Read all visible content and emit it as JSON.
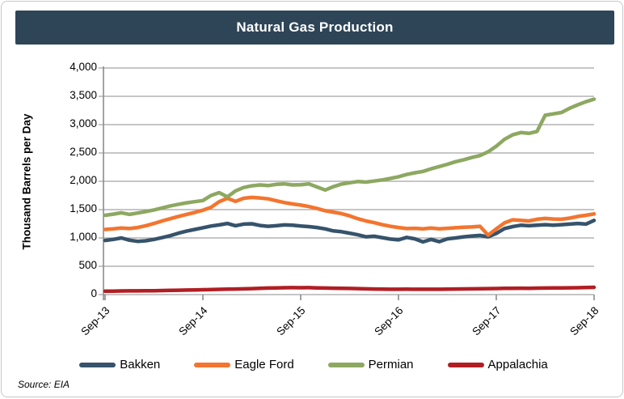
{
  "header": {
    "title": "Natural Gas Production"
  },
  "source": {
    "label": "Source: EIA"
  },
  "colors": {
    "header_bg": "#2E4557",
    "gridline": "#A3A3A3",
    "axis": "#8C8C8C",
    "text": "#000000"
  },
  "chart_data": {
    "type": "line",
    "title": "Natural Gas Production",
    "xlabel": "",
    "ylabel": "Thousand Barrels per Day",
    "ylim": [
      0,
      4000
    ],
    "ytick_step": 500,
    "yticklabels": [
      "4,000",
      "3,500",
      "3,000",
      "2,500",
      "2,000",
      "1,500",
      "1,000",
      "500",
      "0"
    ],
    "xticklabels": [
      "Sep-13",
      "Sep-14",
      "Sep-15",
      "Sep-16",
      "Sep-17",
      "Sep-18"
    ],
    "x_unit": "monthly",
    "x_range": [
      "Sep-13",
      "Sep-18"
    ],
    "points_per_series": 61,
    "grid": "horizontal",
    "legend_position": "bottom",
    "series": [
      {
        "name": "Bakken",
        "color": "#36536B",
        "values": [
          955,
          975,
          1000,
          960,
          940,
          950,
          975,
          1005,
          1040,
          1085,
          1120,
          1150,
          1180,
          1210,
          1230,
          1255,
          1215,
          1245,
          1250,
          1220,
          1205,
          1215,
          1230,
          1225,
          1210,
          1200,
          1185,
          1160,
          1125,
          1110,
          1085,
          1055,
          1020,
          1030,
          1005,
          980,
          965,
          1010,
          985,
          930,
          975,
          935,
          985,
          1000,
          1020,
          1035,
          1045,
          1020,
          1080,
          1165,
          1200,
          1225,
          1215,
          1225,
          1235,
          1225,
          1235,
          1245,
          1255,
          1245,
          1310
        ]
      },
      {
        "name": "Eagle Ford",
        "color": "#F3752F",
        "values": [
          1150,
          1160,
          1175,
          1165,
          1185,
          1215,
          1255,
          1300,
          1340,
          1380,
          1415,
          1450,
          1490,
          1540,
          1640,
          1700,
          1645,
          1700,
          1715,
          1705,
          1690,
          1655,
          1625,
          1600,
          1580,
          1555,
          1520,
          1480,
          1455,
          1430,
          1390,
          1340,
          1300,
          1270,
          1235,
          1205,
          1185,
          1165,
          1170,
          1160,
          1175,
          1160,
          1170,
          1180,
          1190,
          1195,
          1205,
          1050,
          1160,
          1265,
          1320,
          1310,
          1300,
          1330,
          1345,
          1335,
          1330,
          1350,
          1380,
          1400,
          1425
        ]
      },
      {
        "name": "Permian",
        "color": "#8DA861",
        "values": [
          1400,
          1420,
          1445,
          1415,
          1440,
          1465,
          1495,
          1530,
          1565,
          1595,
          1620,
          1640,
          1660,
          1750,
          1800,
          1725,
          1830,
          1890,
          1920,
          1935,
          1925,
          1945,
          1955,
          1935,
          1940,
          1955,
          1900,
          1845,
          1905,
          1950,
          1975,
          1995,
          1985,
          2005,
          2025,
          2050,
          2080,
          2120,
          2150,
          2175,
          2220,
          2260,
          2300,
          2345,
          2380,
          2420,
          2455,
          2520,
          2620,
          2740,
          2820,
          2860,
          2845,
          2880,
          3165,
          3190,
          3215,
          3290,
          3350,
          3405,
          3450
        ]
      },
      {
        "name": "Appalachia",
        "color": "#B01E24",
        "values": [
          60,
          62,
          64,
          65,
          66,
          67,
          69,
          71,
          74,
          77,
          80,
          83,
          86,
          89,
          93,
          96,
          99,
          102,
          106,
          111,
          115,
          118,
          121,
          123,
          121,
          123,
          119,
          116,
          113,
          111,
          108,
          105,
          101,
          99,
          97,
          95,
          94,
          96,
          95,
          94,
          95,
          94,
          96,
          98,
          100,
          102,
          104,
          105,
          107,
          110,
          112,
          113,
          112,
          114,
          115,
          117,
          118,
          120,
          122,
          124,
          128
        ]
      }
    ]
  }
}
